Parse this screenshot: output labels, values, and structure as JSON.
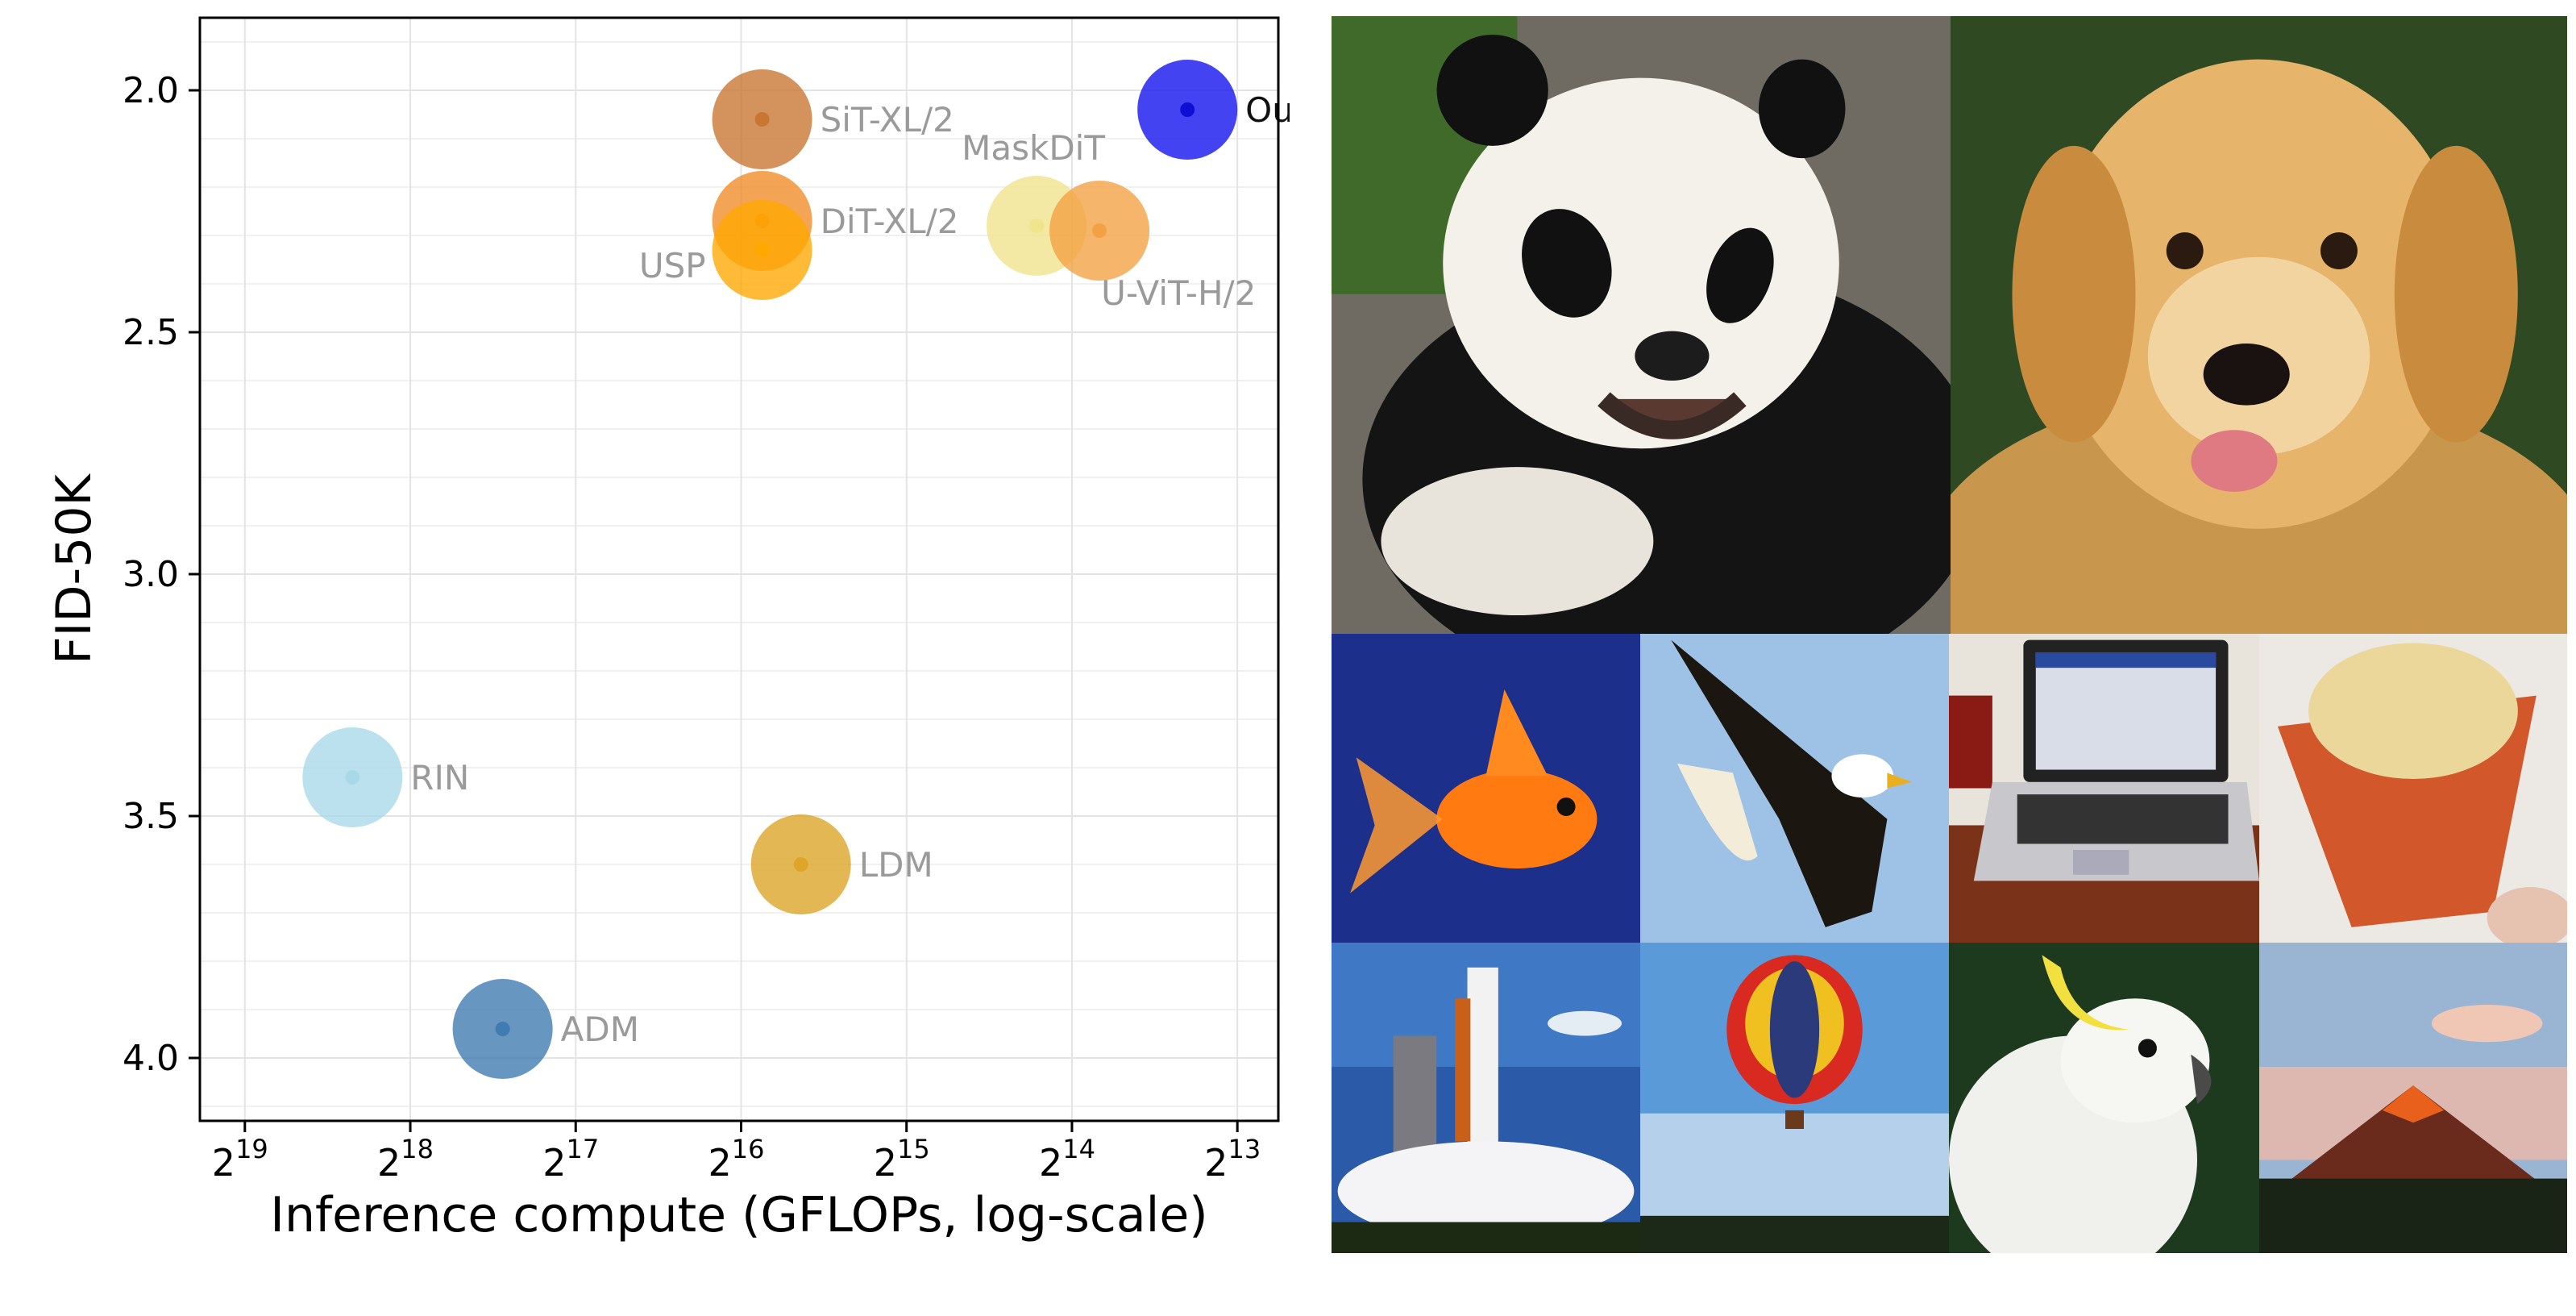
{
  "chart_data": {
    "type": "scatter",
    "title": "",
    "xlabel": "Inference compute (GFLOPs, log-scale)",
    "ylabel": "FID-50K",
    "x_scale": "log2",
    "x_axis_inverted": true,
    "y_axis_inverted": true,
    "xlim": [
      633000,
      6900
    ],
    "ylim": [
      4.13,
      1.85
    ],
    "grid": true,
    "x_ticks": [
      {
        "value": 524288,
        "base": "2",
        "exp": "19"
      },
      {
        "value": 262144,
        "base": "2",
        "exp": "18"
      },
      {
        "value": 131072,
        "base": "2",
        "exp": "17"
      },
      {
        "value": 65536,
        "base": "2",
        "exp": "16"
      },
      {
        "value": 32768,
        "base": "2",
        "exp": "15"
      },
      {
        "value": 16384,
        "base": "2",
        "exp": "14"
      },
      {
        "value": 8192,
        "base": "2",
        "exp": "13"
      }
    ],
    "y_ticks": [
      {
        "value": 2.0,
        "label": "2.0"
      },
      {
        "value": 2.5,
        "label": "2.5"
      },
      {
        "value": 3.0,
        "label": "3.0"
      },
      {
        "value": 3.5,
        "label": "3.5"
      },
      {
        "value": 4.0,
        "label": "4.0"
      }
    ],
    "points": [
      {
        "name": "SiT-XL/2",
        "x": 60000,
        "y": 2.06,
        "color": "#c8732e",
        "label_pos": "right"
      },
      {
        "name": "DiT-XL/2",
        "x": 60000,
        "y": 2.27,
        "color": "#f08a24",
        "label_pos": "right"
      },
      {
        "name": "USP",
        "x": 60000,
        "y": 2.33,
        "color": "#ffa800",
        "label_pos": "left"
      },
      {
        "name": "MaskDiT",
        "x": 19000,
        "y": 2.28,
        "color": "#efe38a",
        "label_pos": "above"
      },
      {
        "name": "U-ViT-H/2",
        "x": 14600,
        "y": 2.29,
        "color": "#f2a040",
        "label_pos": "below"
      },
      {
        "name": "Ours",
        "x": 10100,
        "y": 2.04,
        "color": "#1a1aee",
        "label_pos": "right",
        "highlight": true
      },
      {
        "name": "RIN",
        "x": 334000,
        "y": 3.42,
        "color": "#a6d8e8",
        "label_pos": "right"
      },
      {
        "name": "LDM",
        "x": 51000,
        "y": 3.6,
        "color": "#dda325",
        "label_pos": "right"
      },
      {
        "name": "ADM",
        "x": 178000,
        "y": 3.94,
        "color": "#3c78b0",
        "label_pos": "right"
      }
    ]
  },
  "samples": [
    {
      "name": "giant panda",
      "icon": "panda-image"
    },
    {
      "name": "golden retriever",
      "icon": "golden-retriever-image"
    },
    {
      "name": "goldfish",
      "icon": "goldfish-image"
    },
    {
      "name": "bald eagle",
      "icon": "bald-eagle-image"
    },
    {
      "name": "laptop",
      "icon": "laptop-image"
    },
    {
      "name": "ice cream",
      "icon": "ice-cream-image"
    },
    {
      "name": "space shuttle",
      "icon": "space-shuttle-image"
    },
    {
      "name": "hot air balloon",
      "icon": "hot-air-balloon-image"
    },
    {
      "name": "cockatoo",
      "icon": "cockatoo-image"
    },
    {
      "name": "volcano",
      "icon": "volcano-image"
    }
  ]
}
